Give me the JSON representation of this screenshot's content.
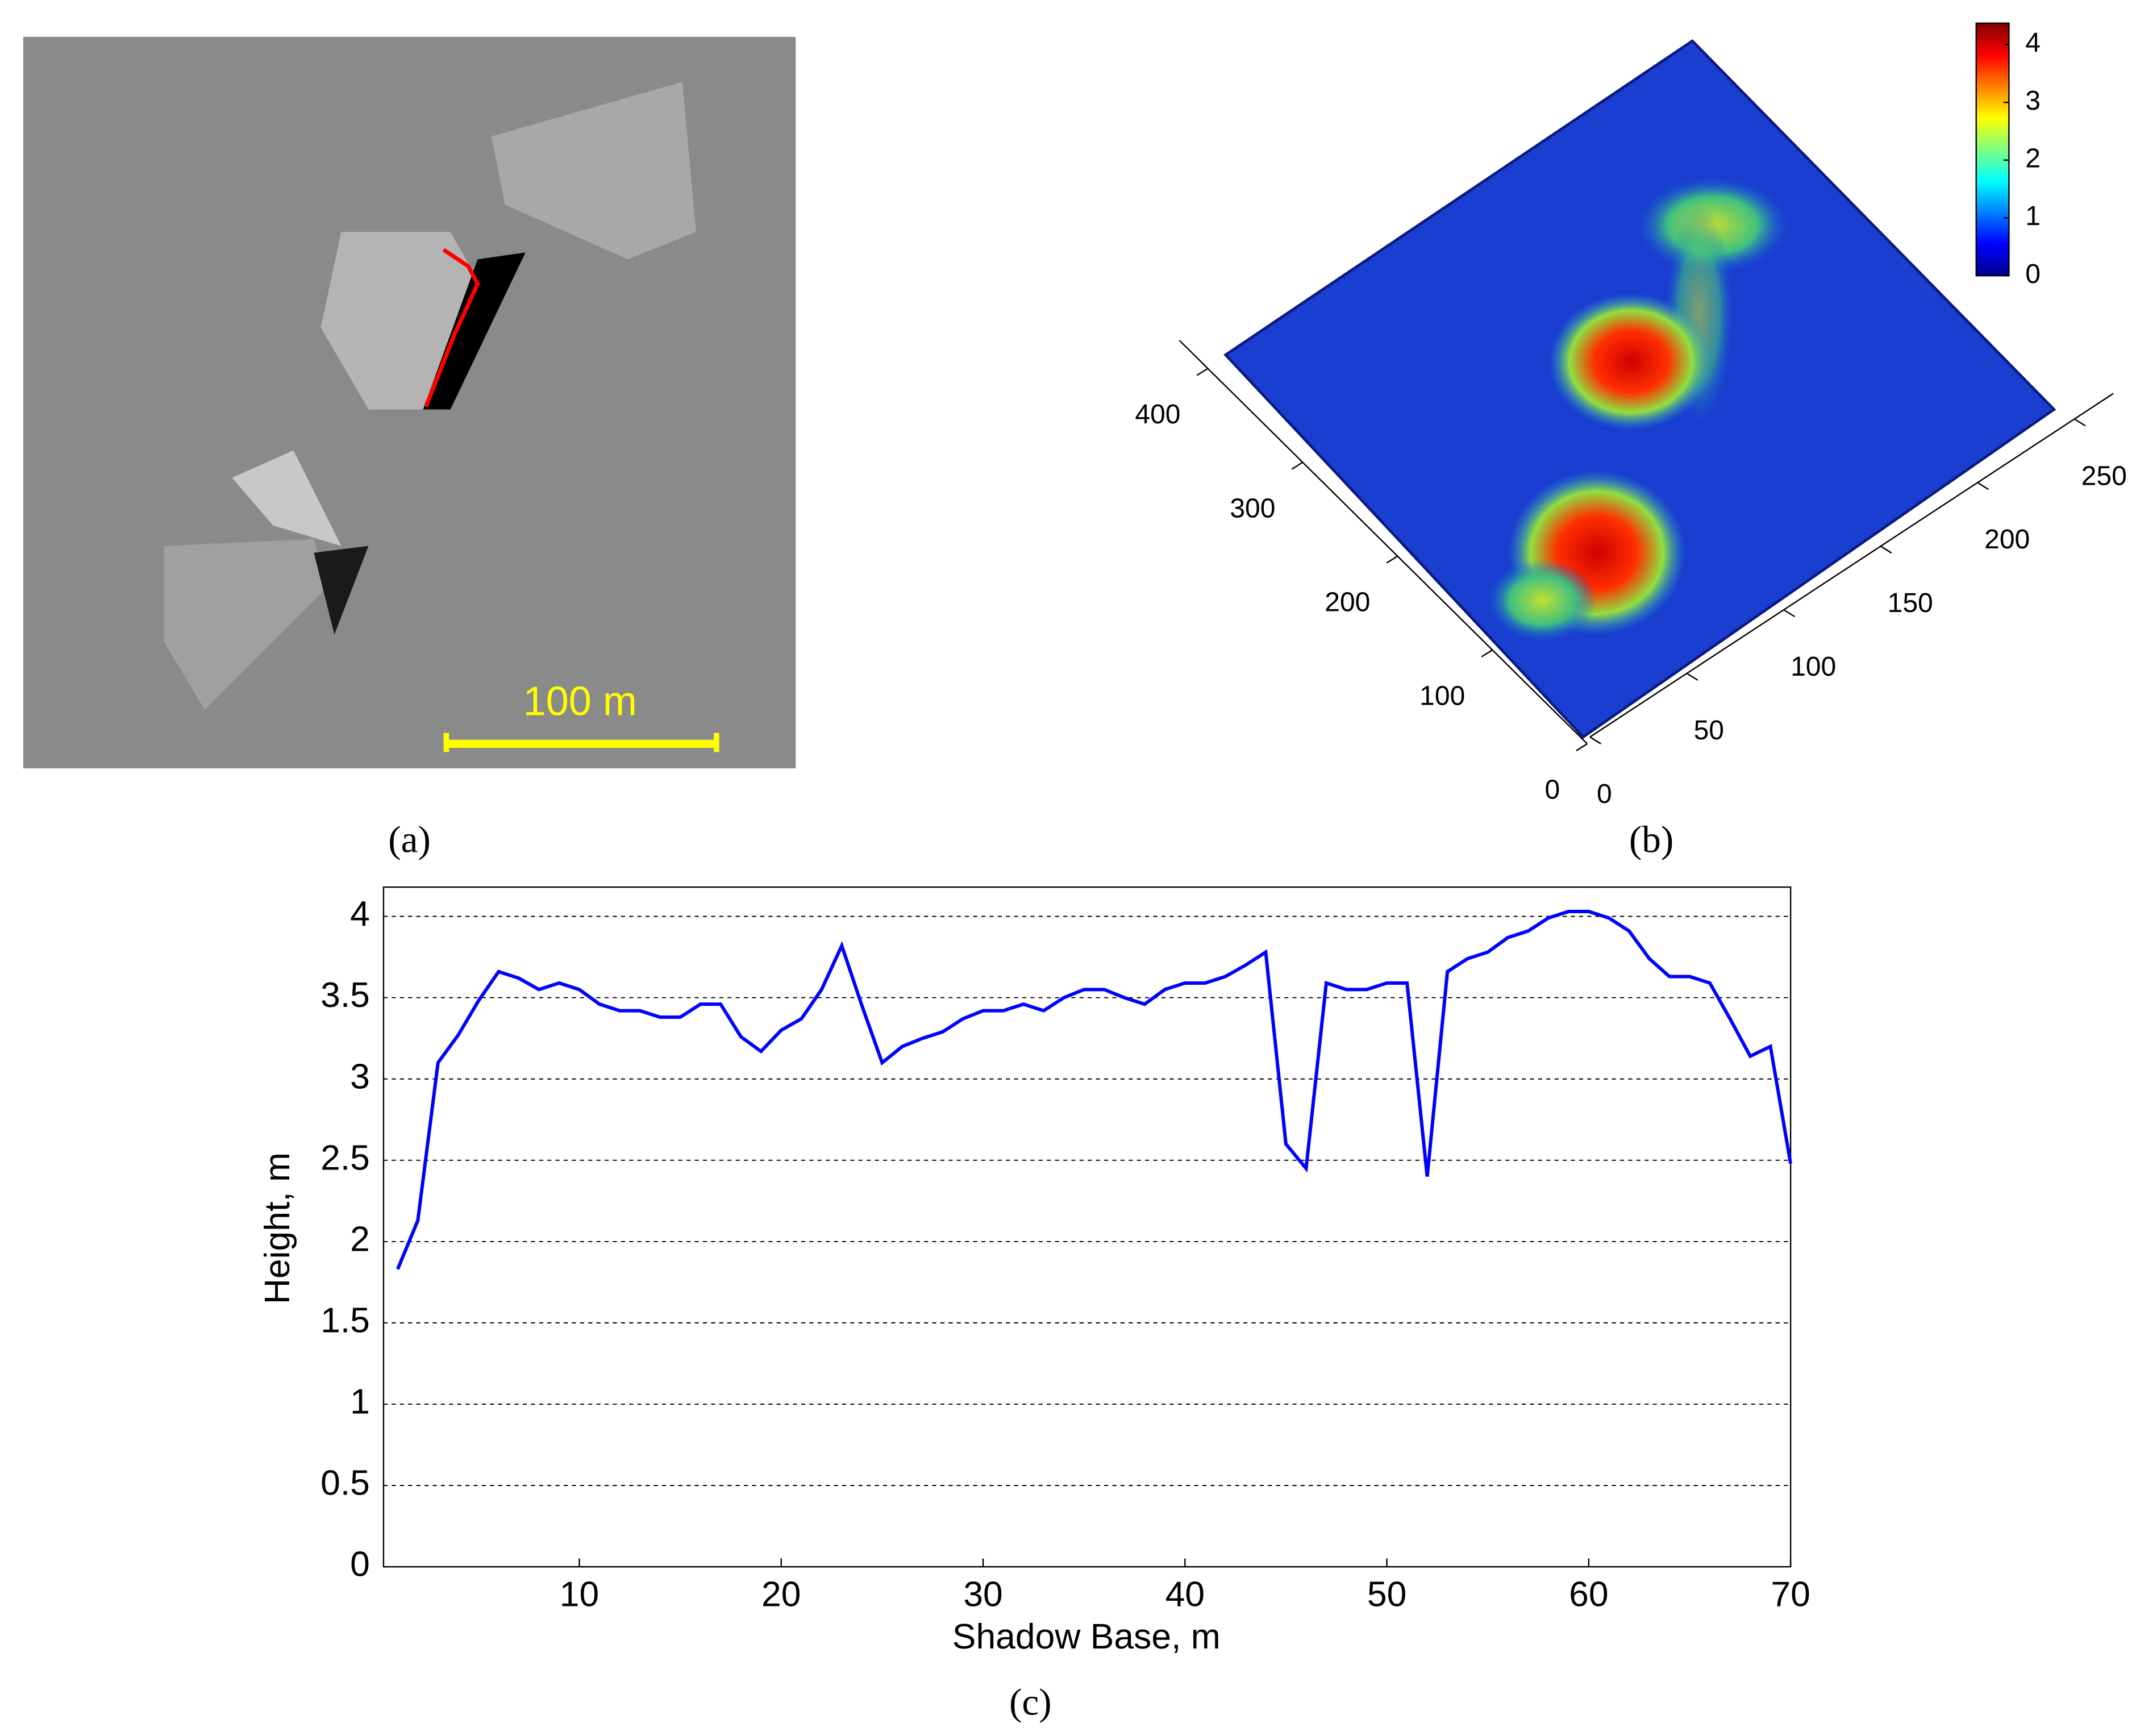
{
  "panel_labels": [
    "(a)",
    "(b)",
    "(c)"
  ],
  "image": {
    "scale_bar_label": "100 m"
  },
  "chart_data": [
    {
      "type": "surface",
      "xticks": [
        0,
        100,
        200,
        300,
        400
      ],
      "xlim": [
        0,
        430
      ],
      "yticks": [
        0,
        50,
        100,
        150,
        200,
        250
      ],
      "ylim": [
        0,
        270
      ],
      "colorbar": {
        "lim": [
          0,
          4.37
        ],
        "ticks": [
          0,
          1,
          2,
          3,
          4
        ]
      }
    },
    {
      "type": "line",
      "x_label": "Shadow Base, m",
      "y_label": "Height, m",
      "x": [
        1,
        2,
        3,
        4,
        5,
        6,
        7,
        8,
        9,
        10,
        11,
        12,
        13,
        14,
        15,
        16,
        17,
        18,
        19,
        20,
        21,
        22,
        23,
        24,
        25,
        26,
        27,
        28,
        29,
        30,
        31,
        32,
        33,
        34,
        35,
        36,
        37,
        38,
        39,
        40,
        41,
        42,
        43,
        44,
        45,
        46,
        47,
        48,
        49,
        50,
        51,
        52,
        53,
        54,
        55,
        56,
        57,
        58,
        59,
        60,
        61,
        62,
        63,
        64,
        65,
        66,
        67,
        68,
        69,
        70
      ],
      "series": [
        {
          "color": "#0000ff",
          "values": [
            1.83,
            2.13,
            3.1,
            3.27,
            3.48,
            3.66,
            3.62,
            3.55,
            3.59,
            3.55,
            3.46,
            3.42,
            3.42,
            3.38,
            3.38,
            3.46,
            3.46,
            3.26,
            3.17,
            3.3,
            3.37,
            3.55,
            3.82,
            3.45,
            3.1,
            3.2,
            3.25,
            3.29,
            3.37,
            3.42,
            3.42,
            3.46,
            3.42,
            3.5,
            3.55,
            3.55,
            3.5,
            3.46,
            3.55,
            3.59,
            3.59,
            3.63,
            3.7,
            3.78,
            2.6,
            2.45,
            3.59,
            3.55,
            3.55,
            3.59,
            3.59,
            2.4,
            3.66,
            3.74,
            3.78,
            3.87,
            3.91,
            3.99,
            4.03,
            4.03,
            3.99,
            3.91,
            3.74,
            3.63,
            3.63,
            3.59,
            3.37,
            3.14,
            3.2,
            2.48
          ]
        }
      ],
      "xlim": [
        0.3,
        70
      ],
      "ylim": [
        0,
        4.18
      ],
      "xticks": [
        10,
        20,
        30,
        40,
        50,
        60,
        70
      ],
      "yticks": [
        0,
        0.5,
        1,
        1.5,
        2,
        2.5,
        3,
        3.5,
        4
      ],
      "grid": true
    }
  ]
}
